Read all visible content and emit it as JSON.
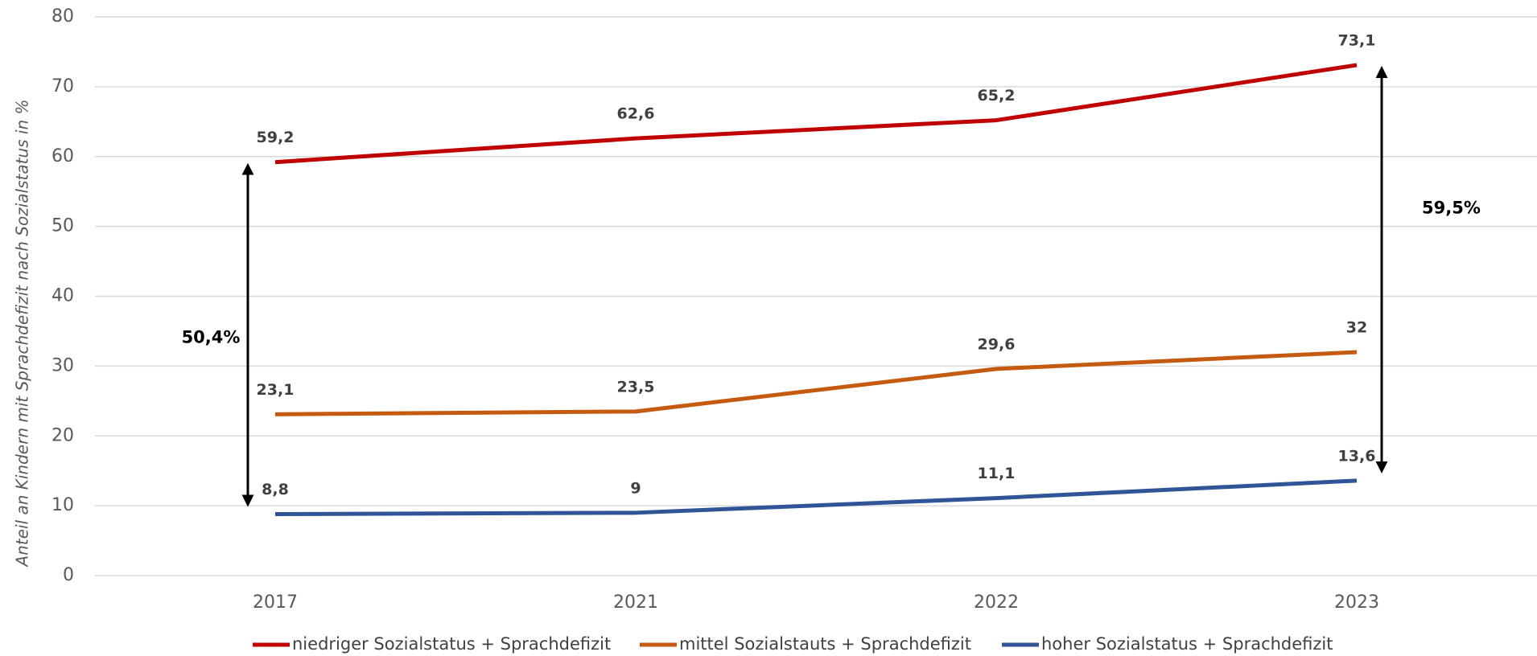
{
  "chart_data": {
    "type": "line",
    "y_label": "Anteil an Kindern mit Sprachdefizit nach Sozialstatus in %",
    "categories": [
      "2017",
      "2021",
      "2022",
      "2023"
    ],
    "series": [
      {
        "name": "niedriger Sozialstatus + Sprachdefizit",
        "color": "#c00000",
        "values": [
          59.2,
          62.6,
          65.2,
          73.1
        ],
        "value_labels": [
          "59,2",
          "62,6",
          "65,2",
          "73,1"
        ]
      },
      {
        "name": "mittel Sozialstauts + Sprachdefizit",
        "color": "#c55a11",
        "values": [
          23.1,
          23.5,
          29.6,
          32
        ],
        "value_labels": [
          "23,1",
          "23,5",
          "29,6",
          "32"
        ]
      },
      {
        "name": "hoher Sozialstatus + Sprachdefizit",
        "color": "#2f5597",
        "values": [
          8.8,
          9,
          11.1,
          13.6
        ],
        "value_labels": [
          "8,8",
          "9",
          "11,1",
          "13,6"
        ]
      }
    ],
    "annotations": [
      "50,4%",
      "59,5%"
    ],
    "ylim": [
      0,
      80
    ],
    "yticks": [
      0,
      10,
      20,
      30,
      40,
      50,
      60,
      70,
      80
    ],
    "grid": true,
    "legend": "bottom"
  }
}
